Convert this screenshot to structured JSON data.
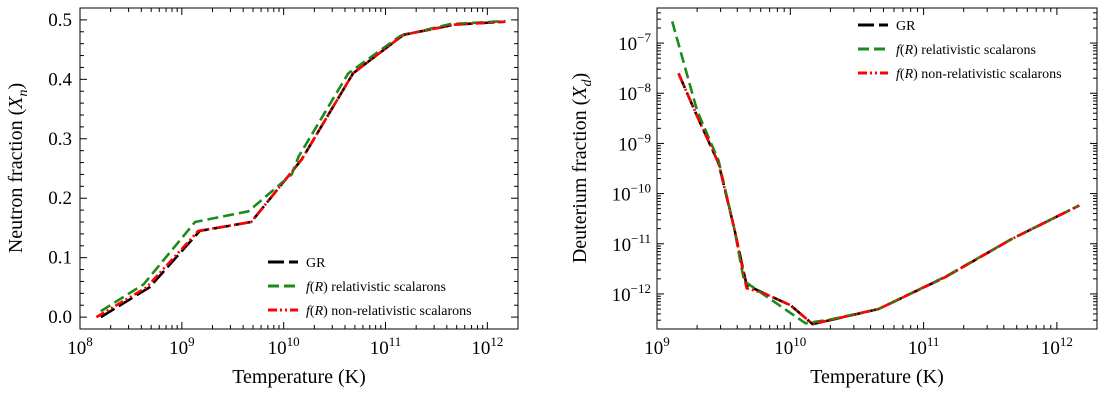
{
  "chart_data": [
    {
      "type": "line",
      "xscale": "log",
      "yscale": "linear",
      "xlabel": "Temperature (K)",
      "ylabel": "Neutron fraction (X_n)",
      "xlim": [
        100000000.0,
        2000000000000.0
      ],
      "ylim": [
        -0.02,
        0.52
      ],
      "xticks": [
        100000000.0,
        1000000000.0,
        10000000000.0,
        100000000000.0,
        1000000000000.0
      ],
      "yticks": [
        0.0,
        0.1,
        0.2,
        0.3,
        0.4,
        0.5
      ],
      "ytick_labels": [
        "0.0",
        "0.1",
        "0.2",
        "0.3",
        "0.4",
        "0.5"
      ],
      "grid": false,
      "legend_position": "lower-right",
      "series": [
        {
          "name": "GR",
          "color": "#000000",
          "style": "longdash",
          "x": [
            160000000.0,
            480000000.0,
            1500000000.0,
            4800000000.0,
            15000000000.0,
            48000000000.0,
            150000000000.0,
            480000000000.0,
            1500000000000.0
          ],
          "y": [
            0.0,
            0.05,
            0.145,
            0.16,
            0.265,
            0.41,
            0.475,
            0.492,
            0.497
          ]
        },
        {
          "name": "f(R) relativistic scalarons",
          "color": "#1a8c1a",
          "style": "dash",
          "x": [
            160000000.0,
            420000000.0,
            1350000000.0,
            4500000000.0,
            12000000000.0,
            14000000000.0,
            43000000000.0,
            140000000000.0,
            430000000000.0,
            1500000000000.0
          ],
          "y": [
            0.01,
            0.055,
            0.16,
            0.178,
            0.24,
            0.27,
            0.41,
            0.473,
            0.493,
            0.498
          ]
        },
        {
          "name": "f(R) non-relativistic scalarons",
          "color": "#ff0000",
          "style": "dashdot",
          "x": [
            145000000.0,
            450000000.0,
            1450000000.0,
            4800000000.0,
            15000000000.0,
            48000000000.0,
            150000000000.0,
            480000000000.0,
            1500000000000.0
          ],
          "y": [
            0.0,
            0.05,
            0.145,
            0.16,
            0.265,
            0.41,
            0.475,
            0.492,
            0.497
          ]
        }
      ]
    },
    {
      "type": "line",
      "xscale": "log",
      "yscale": "log",
      "xlabel": "Temperature (K)",
      "ylabel": "Deuterium fraction (X_d)",
      "xlim": [
        1000000000.0,
        2000000000000.0
      ],
      "ylim": [
        2e-13,
        5e-07
      ],
      "xticks": [
        1000000000.0,
        10000000000.0,
        100000000000.0,
        1000000000000.0
      ],
      "yticks": [
        1e-12,
        1e-11,
        1e-10,
        1e-09,
        1e-08,
        1e-07
      ],
      "ytick_labels": [
        "10^-12",
        "10^-11",
        "10^-10",
        "10^-9",
        "10^-8",
        "10^-7"
      ],
      "grid": false,
      "legend_position": "upper-right",
      "series": [
        {
          "name": "GR",
          "color": "#000000",
          "style": "longdash",
          "x": [
            1450000000.0,
            2000000000.0,
            2900000000.0,
            3800000000.0,
            4700000000.0,
            6500000000.0,
            10000000000.0,
            14700000000.0,
            22000000000.0,
            46000000000.0,
            147000000000.0,
            460000000000.0,
            1470000000000.0
          ],
          "y": [
            2.5e-08,
            3.5e-09,
            4e-10,
            2e-11,
            1.5e-12,
            1e-12,
            6e-13,
            2.5e-13,
            3.2e-13,
            5e-13,
            2.2e-12,
            1.25e-11,
            5.8e-11
          ]
        },
        {
          "name": "f(R) relativistic scalarons",
          "color": "#1a8c1a",
          "style": "dash",
          "x": [
            1300000000.0,
            2000000000.0,
            2900000000.0,
            3800000000.0,
            4500000000.0,
            13000000000.0,
            20000000000.0,
            46000000000.0,
            145000000000.0,
            460000000000.0,
            1470000000000.0
          ],
          "y": [
            2.7e-07,
            4.5e-09,
            4.5e-10,
            2e-11,
            1.8e-12,
            2.6e-13,
            3.1e-13,
            5e-13,
            2.2e-12,
            1.25e-11,
            5.8e-11
          ]
        },
        {
          "name": "f(R) non-relativistic scalarons",
          "color": "#ff0000",
          "style": "dashdot",
          "x": [
            1450000000.0,
            2000000000.0,
            2900000000.0,
            3800000000.0,
            4700000000.0,
            6500000000.0,
            10000000000.0,
            14700000000.0,
            22000000000.0,
            46000000000.0,
            147000000000.0,
            460000000000.0,
            1470000000000.0
          ],
          "y": [
            2.5e-08,
            3.5e-09,
            4e-10,
            2e-11,
            1.3e-12,
            1e-12,
            6e-13,
            2.5e-13,
            3.2e-13,
            5e-13,
            2.2e-12,
            1.25e-11,
            5.8e-11
          ]
        }
      ]
    }
  ]
}
